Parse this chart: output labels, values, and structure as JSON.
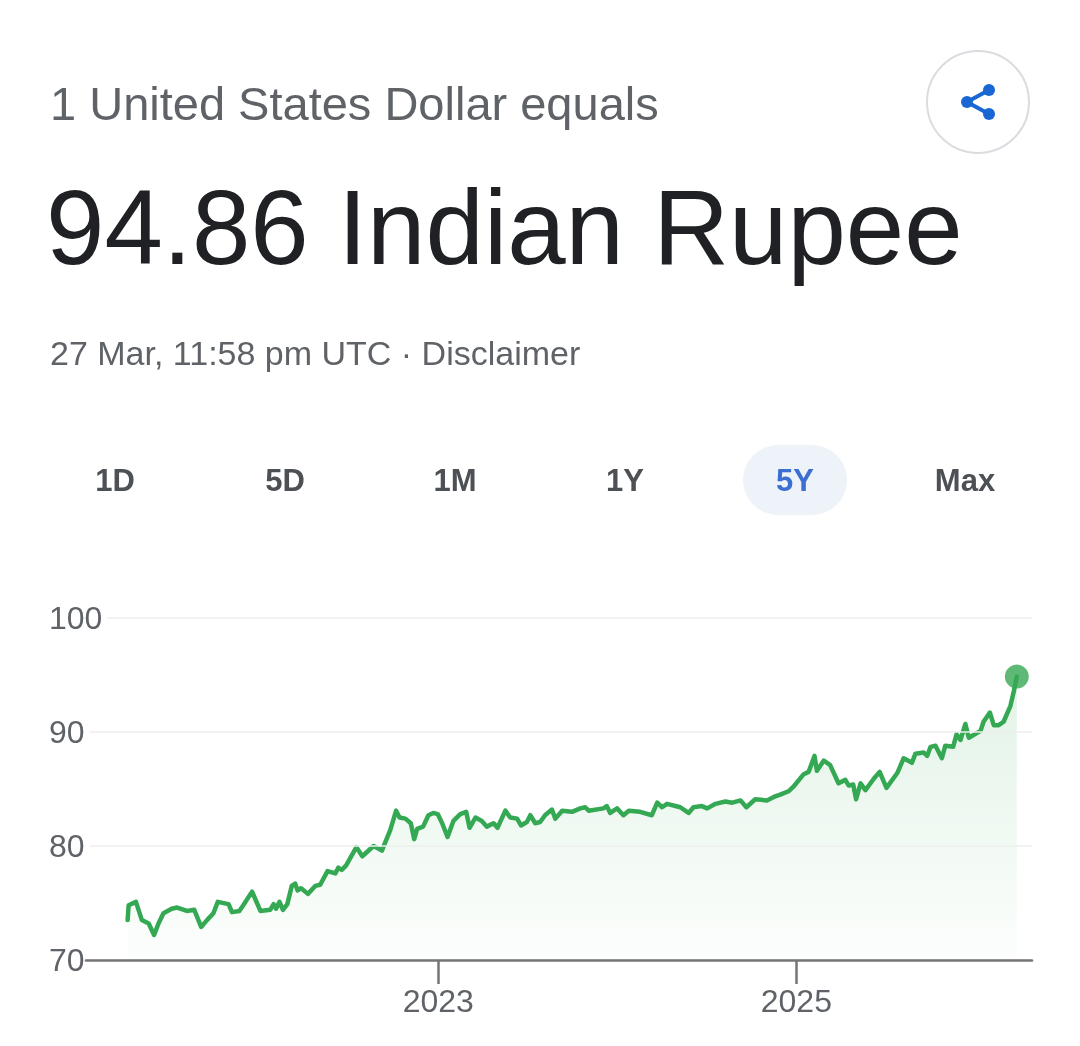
{
  "chart_data": {
    "type": "area",
    "title": "94.86 Indian Rupee",
    "subtitle": "1 United States Dollar equals",
    "annotations": [
      "27 Mar, 11:58 pm UTC · Disclaimer",
      "1D",
      "5D",
      "1M",
      "1Y",
      "5Y",
      "Max"
    ],
    "series": [
      {
        "color": "#34a853",
        "x": [
          "2021-04-07",
          "2021-04-09",
          "2021-04-24",
          "2021-05-06",
          "2021-05-20",
          "2021-05-31",
          "2021-06-09",
          "2021-06-19",
          "2021-07-06",
          "2021-07-17",
          "2021-08-06",
          "2021-08-21",
          "2021-09-04",
          "2021-09-16",
          "2021-09-29",
          "2021-10-08",
          "2021-10-30",
          "2021-11-06",
          "2021-11-21",
          "2021-11-29",
          "2021-12-17",
          "2022-01-03",
          "2022-01-23",
          "2022-01-30",
          "2022-02-04",
          "2022-02-11",
          "2022-02-18",
          "2022-02-27",
          "2022-03-08",
          "2022-03-15",
          "2022-03-20",
          "2022-03-27",
          "2022-04-10",
          "2022-04-25",
          "2022-05-05",
          "2022-05-20",
          "2022-06-05",
          "2022-06-11",
          "2022-06-18",
          "2022-06-27",
          "2022-07-18",
          "2022-07-30",
          "2022-08-22",
          "2022-09-08",
          "2022-09-25",
          "2022-10-07",
          "2022-10-14",
          "2022-10-26",
          "2022-11-06",
          "2022-11-13",
          "2022-11-19",
          "2022-12-01",
          "2022-12-12",
          "2022-12-22",
          "2022-12-31",
          "2023-01-09",
          "2023-01-20",
          "2023-02-01",
          "2023-02-15",
          "2023-02-27",
          "2023-03-06",
          "2023-03-18",
          "2023-03-31",
          "2023-04-10",
          "2023-04-24",
          "2023-05-02",
          "2023-05-18",
          "2023-05-28",
          "2023-06-11",
          "2023-06-19",
          "2023-07-01",
          "2023-07-08",
          "2023-07-18",
          "2023-07-28",
          "2023-08-07",
          "2023-08-21",
          "2023-08-28",
          "2023-09-11",
          "2023-10-01",
          "2023-10-18",
          "2023-10-28",
          "2023-11-04",
          "2023-12-04",
          "2023-12-11",
          "2023-12-18",
          "2024-01-01",
          "2024-01-14",
          "2024-01-25",
          "2024-02-17",
          "2024-03-12",
          "2024-03-23",
          "2024-04-02",
          "2024-04-12",
          "2024-05-09",
          "2024-05-26",
          "2024-06-05",
          "2024-06-22",
          "2024-07-03",
          "2024-07-20",
          "2024-08-09",
          "2024-08-23",
          "2024-09-09",
          "2024-09-21",
          "2024-10-09",
          "2024-11-02",
          "2024-11-16",
          "2024-11-29",
          "2024-12-16",
          "2024-12-26",
          "2025-01-16",
          "2025-01-26",
          "2025-02-07",
          "2025-02-12",
          "2025-02-26",
          "2025-03-11",
          "2025-03-28",
          "2025-04-11",
          "2025-04-18",
          "2025-04-27",
          "2025-05-03",
          "2025-05-12",
          "2025-05-22",
          "2025-06-08",
          "2025-06-20",
          "2025-07-04",
          "2025-07-26",
          "2025-08-08",
          "2025-08-25",
          "2025-09-01",
          "2025-09-18",
          "2025-09-25",
          "2025-10-02",
          "2025-10-12",
          "2025-10-25",
          "2025-11-01",
          "2025-11-17",
          "2025-11-24",
          "2025-12-02",
          "2025-12-12",
          "2025-12-19",
          "2026-01-12",
          "2026-01-18",
          "2026-01-31",
          "2026-02-08",
          "2026-02-18",
          "2026-02-28",
          "2026-03-14",
          "2026-03-21",
          "2026-03-27"
        ],
        "values": [
          73.5,
          74.8,
          75.1,
          73.5,
          73.2,
          72.2,
          73.2,
          74.1,
          74.5,
          74.6,
          74.3,
          74.4,
          72.9,
          73.5,
          74.1,
          75.1,
          74.9,
          74.2,
          74.3,
          74.8,
          76.0,
          74.3,
          74.4,
          74.9,
          74.5,
          75.1,
          74.4,
          74.9,
          76.5,
          76.7,
          76.1,
          76.3,
          75.8,
          76.5,
          76.6,
          77.8,
          77.6,
          78.1,
          77.9,
          78.3,
          79.9,
          79.1,
          80.0,
          79.6,
          81.4,
          83.1,
          82.5,
          82.4,
          82.0,
          80.6,
          81.5,
          81.7,
          82.7,
          82.9,
          82.8,
          82.0,
          80.8,
          82.2,
          82.8,
          83.0,
          81.6,
          82.5,
          82.2,
          81.7,
          82.0,
          81.6,
          83.1,
          82.5,
          82.4,
          81.8,
          82.1,
          82.7,
          82.0,
          82.1,
          82.7,
          83.2,
          82.4,
          83.1,
          83.0,
          83.3,
          83.4,
          83.1,
          83.3,
          83.5,
          82.9,
          83.3,
          82.7,
          83.1,
          83.0,
          82.7,
          83.8,
          83.4,
          83.7,
          83.4,
          82.9,
          83.4,
          83.5,
          83.3,
          83.7,
          83.9,
          83.8,
          84.0,
          83.4,
          84.1,
          84.0,
          84.3,
          84.5,
          84.8,
          85.2,
          86.3,
          86.5,
          87.9,
          86.6,
          87.5,
          87.1,
          85.5,
          85.8,
          85.3,
          85.4,
          84.1,
          85.5,
          84.9,
          85.9,
          86.5,
          85.1,
          86.4,
          87.7,
          87.3,
          88.1,
          88.2,
          87.9,
          88.7,
          88.8,
          87.7,
          88.8,
          88.7,
          89.8,
          89.3,
          90.7,
          89.5,
          90.1,
          90.9,
          91.7,
          90.6,
          90.6,
          90.9,
          92.3,
          93.6,
          94.86
        ]
      },
      {
        "type": "scatter",
        "marker": "circle",
        "color": "#34a853",
        "x": [
          "2026-03-27"
        ],
        "values": [
          94.86
        ]
      }
    ],
    "xlim": [
      "2021-01-12",
      "2026-04-27"
    ],
    "xticks": [
      {
        "value": "2023-01-01",
        "label": "2023"
      },
      {
        "value": "2025-01-01",
        "label": "2025"
      }
    ],
    "ylim": [
      70,
      100
    ],
    "yticks": [
      70,
      80,
      90,
      100
    ],
    "grid": "y",
    "marker": "none",
    "line_style": "solid"
  }
}
